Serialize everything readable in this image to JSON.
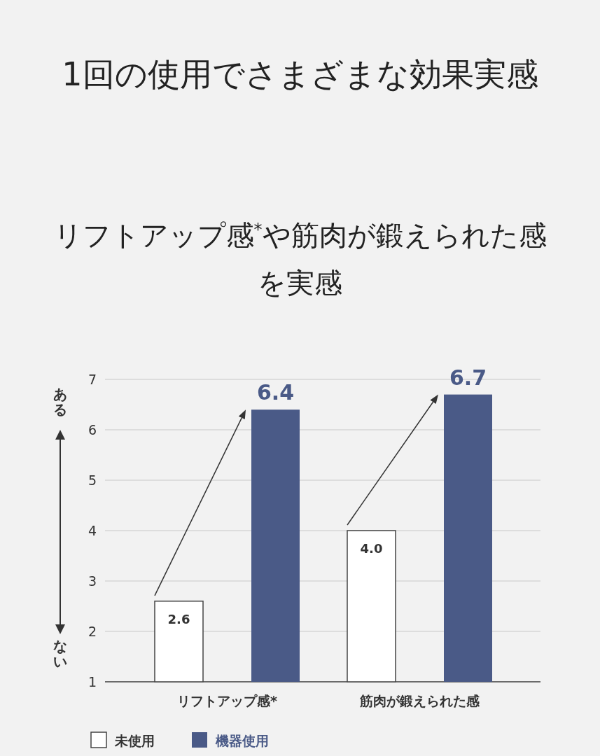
{
  "chart_data": {
    "type": "bar",
    "title": "1回の使用でさまざまな効果実感",
    "subtitle": "リフトアップ感$^{*}$や筋肉が鍛えられた感を実感",
    "categories": [
      "リフトアップ感*",
      "筋肉が鍛えられた感"
    ],
    "series": [
      {
        "name": "未使用",
        "color": "#ffffff",
        "values": [
          2.6,
          4.0
        ],
        "value_labels": [
          "2.6",
          "4.0"
        ]
      },
      {
        "name": "機器使用",
        "color": "#4a5a87",
        "values": [
          6.4,
          6.7
        ],
        "value_labels": [
          "6.4",
          "6.7"
        ]
      }
    ],
    "ylim": [
      1,
      7
    ],
    "yticks": [
      1,
      2,
      3,
      4,
      5,
      6,
      7
    ],
    "grid": "y",
    "legend": "bottom left",
    "annotations": [
      "ある",
      "ない"
    ]
  }
}
